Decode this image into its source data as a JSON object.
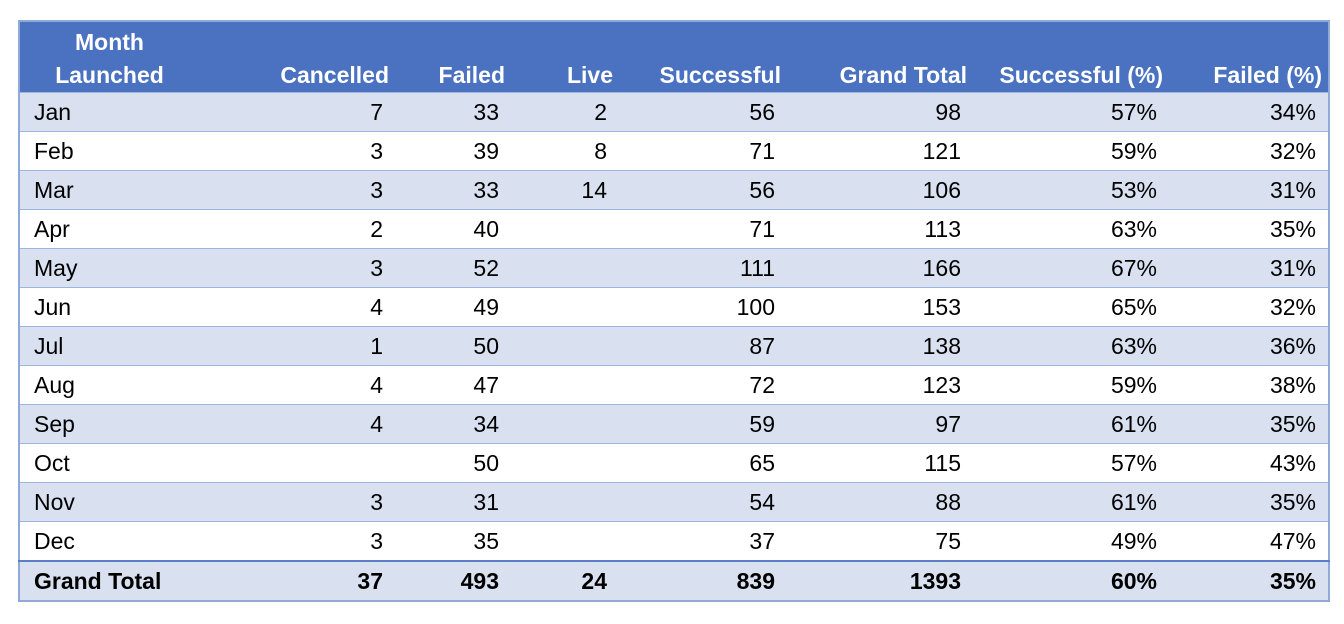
{
  "headers": [
    "Month Launched",
    "Cancelled",
    "Failed",
    "Live",
    "Successful",
    "Grand Total",
    "Successful (%)",
    "Failed (%)"
  ],
  "rows": [
    [
      "Jan",
      "7",
      "33",
      "2",
      "56",
      "98",
      "57%",
      "34%"
    ],
    [
      "Feb",
      "3",
      "39",
      "8",
      "71",
      "121",
      "59%",
      "32%"
    ],
    [
      "Mar",
      "3",
      "33",
      "14",
      "56",
      "106",
      "53%",
      "31%"
    ],
    [
      "Apr",
      "2",
      "40",
      "",
      "71",
      "113",
      "63%",
      "35%"
    ],
    [
      "May",
      "3",
      "52",
      "",
      "111",
      "166",
      "67%",
      "31%"
    ],
    [
      "Jun",
      "4",
      "49",
      "",
      "100",
      "153",
      "65%",
      "32%"
    ],
    [
      "Jul",
      "1",
      "50",
      "",
      "87",
      "138",
      "63%",
      "36%"
    ],
    [
      "Aug",
      "4",
      "47",
      "",
      "72",
      "123",
      "59%",
      "38%"
    ],
    [
      "Sep",
      "4",
      "34",
      "",
      "59",
      "97",
      "61%",
      "35%"
    ],
    [
      "Oct",
      "",
      "50",
      "",
      "65",
      "115",
      "57%",
      "43%"
    ],
    [
      "Nov",
      "3",
      "31",
      "",
      "54",
      "88",
      "61%",
      "35%"
    ],
    [
      "Dec",
      "3",
      "35",
      "",
      "37",
      "75",
      "49%",
      "47%"
    ]
  ],
  "total": [
    "Grand Total",
    "37",
    "493",
    "24",
    "839",
    "1393",
    "60%",
    "35%"
  ],
  "colors": {
    "header_bg": "#4a72c0",
    "band_bg": "#d9e1f1",
    "border": "#9fb5df"
  }
}
